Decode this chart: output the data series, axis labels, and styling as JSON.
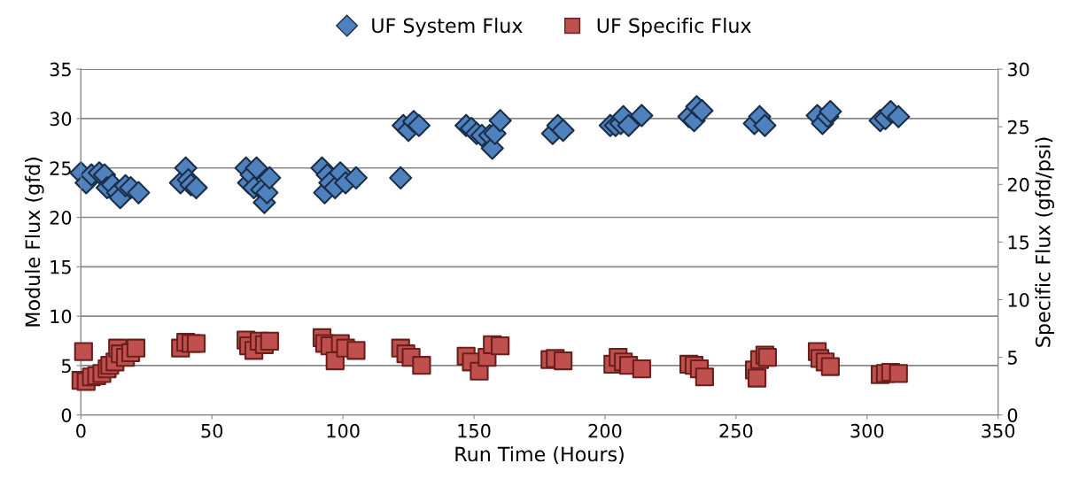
{
  "chart_data": {
    "type": "scatter",
    "xlabel": "Run Time (Hours)",
    "ylabel": "Module Flux (gfd)",
    "y2label": "Specific Flux (gfd/psi)",
    "xlim": [
      0,
      350
    ],
    "xticks": [
      0,
      50,
      100,
      150,
      200,
      250,
      300,
      350
    ],
    "ylim": [
      0,
      35
    ],
    "yticks": [
      0,
      5,
      10,
      15,
      20,
      25,
      30,
      35
    ],
    "y2lim": [
      0,
      30
    ],
    "y2ticks": [
      0,
      5,
      10,
      15,
      20,
      25,
      30
    ],
    "grid": "y",
    "legend": "top",
    "series": [
      {
        "name": "UF System Flux",
        "color": "#4f81bd",
        "marker": "diamond",
        "axis": "y",
        "x": [
          0,
          2,
          4,
          7,
          9,
          10,
          12,
          14,
          15,
          17,
          19,
          22,
          38,
          40,
          41,
          42,
          44,
          63,
          64,
          65,
          66,
          67,
          69,
          70,
          71,
          72,
          92,
          93,
          94,
          95,
          97,
          99,
          101,
          105,
          122,
          123,
          125,
          127,
          129,
          147,
          149,
          151,
          153,
          156,
          157,
          158,
          160,
          180,
          182,
          184,
          202,
          204,
          206,
          207,
          209,
          214,
          232,
          234,
          235,
          237,
          257,
          259,
          261,
          281,
          283,
          285,
          286,
          305,
          307,
          309,
          312
        ],
        "values": [
          24.5,
          23.5,
          24.3,
          24.5,
          24.3,
          23,
          23.3,
          22.5,
          22,
          23.2,
          23,
          22.5,
          23.5,
          25,
          23.8,
          23.3,
          23,
          25,
          23.5,
          24.3,
          23,
          25,
          22.8,
          21.5,
          22.5,
          24,
          25,
          22.5,
          24.3,
          23.5,
          23,
          24.5,
          23.5,
          24,
          24,
          29.3,
          28.8,
          29.7,
          29.3,
          29.3,
          29,
          28.5,
          28.3,
          28.3,
          27,
          28.5,
          29.8,
          28.5,
          29.3,
          28.8,
          29.3,
          29.3,
          29.5,
          30.2,
          29.3,
          30.3,
          30.2,
          29.8,
          31.2,
          30.8,
          29.5,
          30.2,
          29.3,
          30.3,
          29.5,
          30.2,
          30.7,
          29.8,
          30,
          30.7,
          30.2
        ]
      },
      {
        "name": "UF Specific Flux",
        "color": "#c0504d",
        "marker": "square",
        "axis": "y2",
        "x": [
          0,
          1,
          2,
          4,
          6,
          8,
          10,
          11,
          13,
          14,
          15,
          17,
          19,
          21,
          38,
          40,
          42,
          44,
          63,
          64,
          66,
          68,
          70,
          72,
          92,
          93,
          95,
          97,
          99,
          101,
          105,
          122,
          124,
          126,
          130,
          147,
          149,
          152,
          155,
          157,
          160,
          179,
          181,
          184,
          203,
          205,
          207,
          209,
          214,
          232,
          234,
          236,
          238,
          257,
          258,
          259,
          261,
          262,
          281,
          282,
          284,
          286,
          305,
          307,
          309,
          312
        ],
        "values": [
          3.0,
          5.5,
          2.9,
          3.3,
          3.4,
          3.6,
          4.0,
          4.3,
          4.6,
          5.8,
          5.3,
          5.0,
          5.4,
          5.8,
          5.8,
          6.3,
          6.2,
          6.2,
          6.5,
          6.0,
          5.6,
          6.4,
          6.1,
          6.4,
          6.7,
          6.2,
          6.0,
          4.7,
          6.2,
          5.8,
          5.6,
          5.8,
          5.3,
          5.0,
          4.3,
          5.1,
          4.6,
          3.8,
          5.0,
          6.1,
          6.0,
          4.8,
          4.9,
          4.7,
          4.4,
          5.0,
          4.6,
          4.3,
          4.0,
          4.4,
          4.3,
          4.0,
          3.3,
          3.9,
          3.2,
          4.8,
          5.2,
          5.0,
          5.5,
          4.9,
          4.6,
          4.2,
          3.5,
          3.6,
          3.7,
          3.6
        ]
      }
    ]
  }
}
